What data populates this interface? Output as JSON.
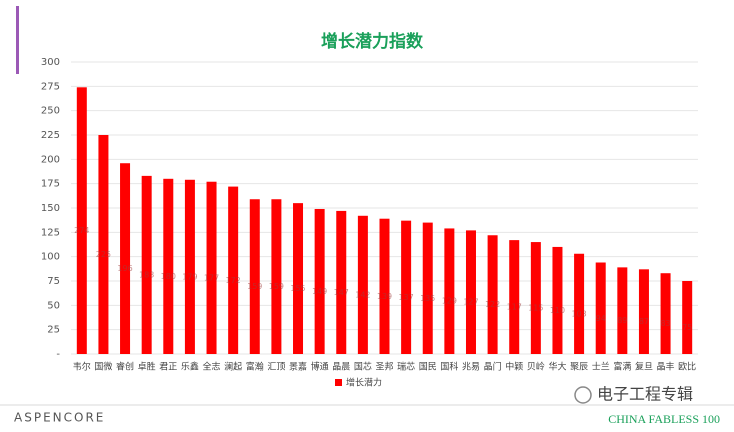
{
  "chart_data": {
    "type": "bar",
    "title": "增长潜力指数",
    "categories": [
      "韦尔",
      "国微",
      "睿创",
      "卓胜",
      "君正",
      "乐鑫",
      "全志",
      "澜起",
      "富瀚",
      "汇顶",
      "景嘉",
      "博通",
      "晶晨",
      "国芯",
      "圣邦",
      "瑞芯",
      "国民",
      "国科",
      "兆易",
      "晶门",
      "中颖",
      "贝岭",
      "华大",
      "聚辰",
      "士兰",
      "富满",
      "复旦",
      "晶丰",
      "欧比"
    ],
    "series": [
      {
        "name": "增长潜力",
        "color": "#ff0000",
        "values": [
          274,
          225,
          196,
          183,
          180,
          179,
          177,
          172,
          159,
          159,
          155,
          149,
          147,
          142,
          139,
          137,
          135,
          129,
          127,
          122,
          117,
          115,
          110,
          103,
          94,
          89,
          87,
          83,
          75
        ]
      }
    ],
    "ylim": [
      0,
      300
    ],
    "yticks": [
      {
        "value": 0,
        "label": "-"
      },
      25,
      50,
      75,
      100,
      125,
      150,
      175,
      200,
      225,
      250,
      275,
      300
    ],
    "grid": true,
    "legend": "bottom"
  },
  "footer": {
    "brand": "ASPENCORE",
    "watermark": "电子工程专辑",
    "tag": "CHINA FABLESS 100"
  }
}
